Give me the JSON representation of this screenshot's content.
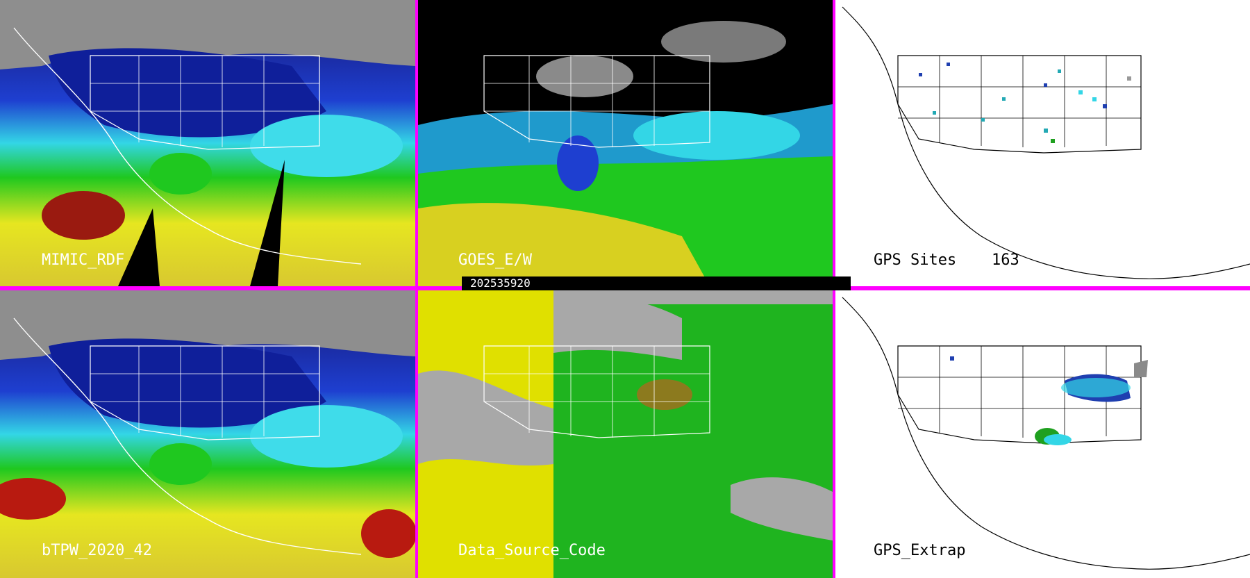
{
  "colors": {
    "divider": "#ff00ff",
    "tpw_scale": [
      "#9a9a9a",
      "#0a0a8c",
      "#1e3fd0",
      "#33d6e6",
      "#7af0f0",
      "#1fc81f",
      "#e6e620",
      "#cc2200",
      "#800000"
    ],
    "source_codes": [
      "#a8a8a8",
      "#e0e000",
      "#1fb41f",
      "#8c7a1e",
      "#1a1a1a"
    ]
  },
  "panels": [
    {
      "id": "mimic-rdf",
      "label": "MIMIC_RDF",
      "type": "satellite-tpw"
    },
    {
      "id": "goes-ew",
      "label": "GOES_E/W",
      "type": "satellite-tpw-masked"
    },
    {
      "id": "gps-sites",
      "label": "GPS Sites",
      "count": "163",
      "type": "station-map"
    },
    {
      "id": "btpw",
      "label": "bTPW_2020_42",
      "type": "satellite-tpw"
    },
    {
      "id": "data-source",
      "label": "Data_Source_Code",
      "type": "categorical"
    },
    {
      "id": "gps-extrap",
      "label": "GPS_Extrap",
      "type": "station-map"
    }
  ],
  "timestamp": "202535920"
}
